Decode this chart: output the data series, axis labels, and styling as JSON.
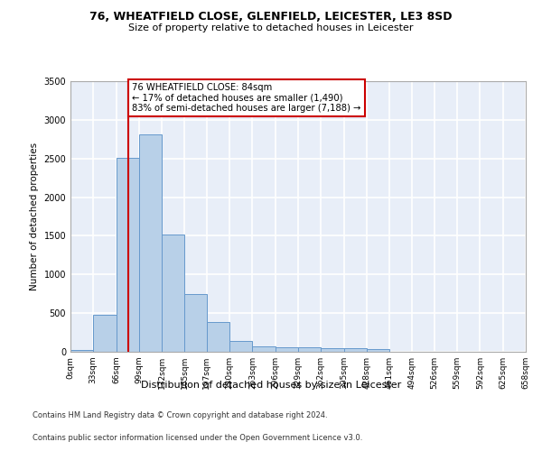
{
  "title1": "76, WHEATFIELD CLOSE, GLENFIELD, LEICESTER, LE3 8SD",
  "title2": "Size of property relative to detached houses in Leicester",
  "xlabel": "Distribution of detached houses by size in Leicester",
  "ylabel": "Number of detached properties",
  "annotation_title": "76 WHEATFIELD CLOSE: 84sqm",
  "annotation_line1": "← 17% of detached houses are smaller (1,490)",
  "annotation_line2": "83% of semi-detached houses are larger (7,188) →",
  "vline_x": 84,
  "bin_edges": [
    0,
    33,
    66,
    99,
    132,
    165,
    197,
    230,
    263,
    296,
    329,
    362,
    395,
    428,
    461,
    494,
    526,
    559,
    592,
    625,
    658
  ],
  "bar_heights": [
    25,
    480,
    2510,
    2810,
    1520,
    750,
    390,
    145,
    75,
    55,
    55,
    50,
    50,
    30,
    5,
    0,
    0,
    0,
    0,
    0
  ],
  "bar_color": "#b8d0e8",
  "bar_edge_color": "#6699cc",
  "vline_color": "#cc0000",
  "background_color": "#e8eef8",
  "grid_color": "#ffffff",
  "ylim": [
    0,
    3500
  ],
  "yticks": [
    0,
    500,
    1000,
    1500,
    2000,
    2500,
    3000,
    3500
  ],
  "footer1": "Contains HM Land Registry data © Crown copyright and database right 2024.",
  "footer2": "Contains public sector information licensed under the Open Government Licence v3.0."
}
